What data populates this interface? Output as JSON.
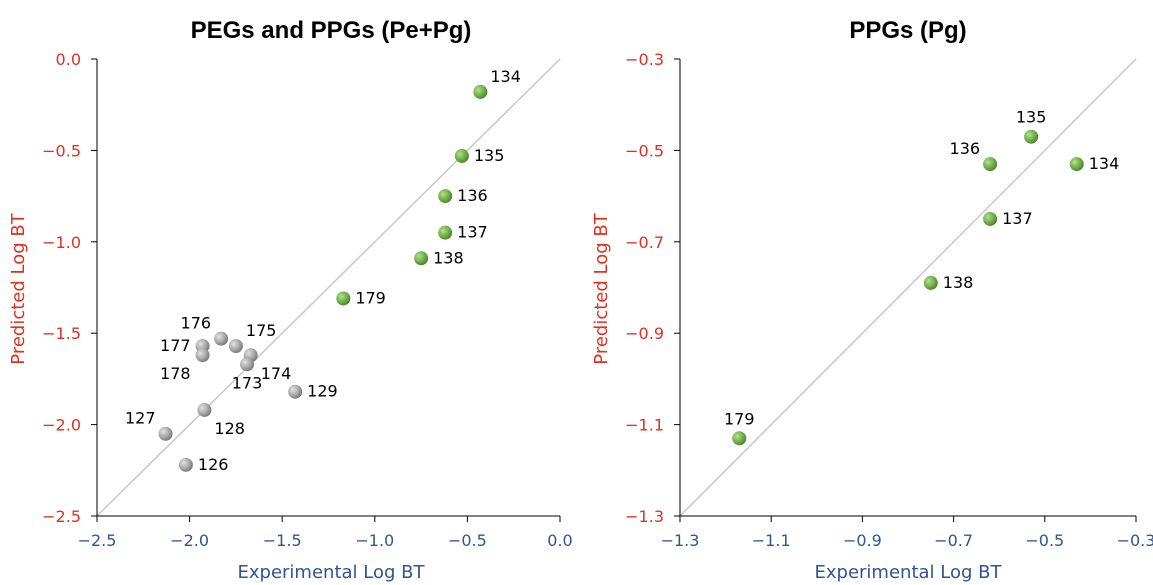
{
  "colors": {
    "green_point": "#70ad47",
    "grey_point": "#a5a5a5",
    "x_axis_text": "#2f5597",
    "y_axis_text": "#e0301e",
    "diagonal": "#c8c8c8"
  },
  "chart_data": [
    {
      "type": "scatter",
      "title": "PEGs and PPGs (Pe+Pg)",
      "xlabel": "Experimental Log BT",
      "ylabel": "Predicted Log BT",
      "xlim": [
        -2.5,
        0.0
      ],
      "ylim": [
        -2.5,
        0.0
      ],
      "xticks": [
        -2.5,
        -2.0,
        -1.5,
        -1.0,
        -0.5,
        0.0
      ],
      "yticks": [
        -2.5,
        -2.0,
        -1.5,
        -1.0,
        -0.5,
        0.0
      ],
      "xtick_labels": [
        "−2.5",
        "−2.0",
        "−1.5",
        "−1.0",
        "−0.5",
        "0.0"
      ],
      "ytick_labels": [
        "−2.5",
        "−2.0",
        "−1.5",
        "−1.0",
        "−0.5",
        "0.0"
      ],
      "diagonal": true,
      "grid": false,
      "points": [
        {
          "label": "134",
          "x": -0.43,
          "y": -0.18,
          "group": "green",
          "pos": "ur"
        },
        {
          "label": "135",
          "x": -0.53,
          "y": -0.53,
          "group": "green",
          "pos": "r"
        },
        {
          "label": "136",
          "x": -0.62,
          "y": -0.75,
          "group": "green",
          "pos": "r"
        },
        {
          "label": "137",
          "x": -0.62,
          "y": -0.95,
          "group": "green",
          "pos": "r"
        },
        {
          "label": "138",
          "x": -0.75,
          "y": -1.09,
          "group": "green",
          "pos": "r"
        },
        {
          "label": "179",
          "x": -1.17,
          "y": -1.31,
          "group": "green",
          "pos": "r"
        },
        {
          "label": "176",
          "x": -1.83,
          "y": -1.53,
          "group": "grey",
          "pos": "ul"
        },
        {
          "label": "175",
          "x": -1.75,
          "y": -1.57,
          "group": "grey",
          "pos": "ur"
        },
        {
          "label": "177",
          "x": -1.93,
          "y": -1.57,
          "group": "grey",
          "pos": "l"
        },
        {
          "label": "178",
          "x": -1.93,
          "y": -1.62,
          "group": "grey",
          "pos": "bl"
        },
        {
          "label": "174",
          "x": -1.67,
          "y": -1.62,
          "group": "grey",
          "pos": "br"
        },
        {
          "label": "173",
          "x": -1.69,
          "y": -1.67,
          "group": "grey",
          "pos": "b"
        },
        {
          "label": "129",
          "x": -1.43,
          "y": -1.82,
          "group": "grey",
          "pos": "r"
        },
        {
          "label": "128",
          "x": -1.92,
          "y": -1.92,
          "group": "grey",
          "pos": "br"
        },
        {
          "label": "127",
          "x": -2.13,
          "y": -2.05,
          "group": "grey",
          "pos": "ul"
        },
        {
          "label": "126",
          "x": -2.02,
          "y": -2.22,
          "group": "grey",
          "pos": "r"
        }
      ]
    },
    {
      "type": "scatter",
      "title": "PPGs (Pg)",
      "xlabel": "Experimental Log BT",
      "ylabel": "Predicted Log BT",
      "xlim": [
        -1.3,
        -0.3
      ],
      "ylim": [
        -1.3,
        -0.3
      ],
      "xticks": [
        -1.3,
        -1.1,
        -0.9,
        -0.7,
        -0.5,
        -0.3
      ],
      "yticks": [
        -1.3,
        -1.1,
        -0.9,
        -0.7,
        -0.5,
        -0.3
      ],
      "xtick_labels": [
        "−1.3",
        "−1.1",
        "−0.9",
        "−0.7",
        "−0.5",
        "−0.3"
      ],
      "ytick_labels": [
        "−1.3",
        "−1.1",
        "−0.9",
        "−0.7",
        "−0.5",
        "−0.3"
      ],
      "diagonal": true,
      "grid": false,
      "points": [
        {
          "label": "135",
          "x": -0.53,
          "y": -0.47,
          "group": "green",
          "pos": "u"
        },
        {
          "label": "136",
          "x": -0.62,
          "y": -0.53,
          "group": "green",
          "pos": "ul"
        },
        {
          "label": "134",
          "x": -0.43,
          "y": -0.53,
          "group": "green",
          "pos": "r"
        },
        {
          "label": "137",
          "x": -0.62,
          "y": -0.65,
          "group": "green",
          "pos": "r"
        },
        {
          "label": "138",
          "x": -0.75,
          "y": -0.79,
          "group": "green",
          "pos": "r"
        },
        {
          "label": "179",
          "x": -1.17,
          "y": -1.13,
          "group": "green",
          "pos": "u"
        }
      ]
    }
  ]
}
